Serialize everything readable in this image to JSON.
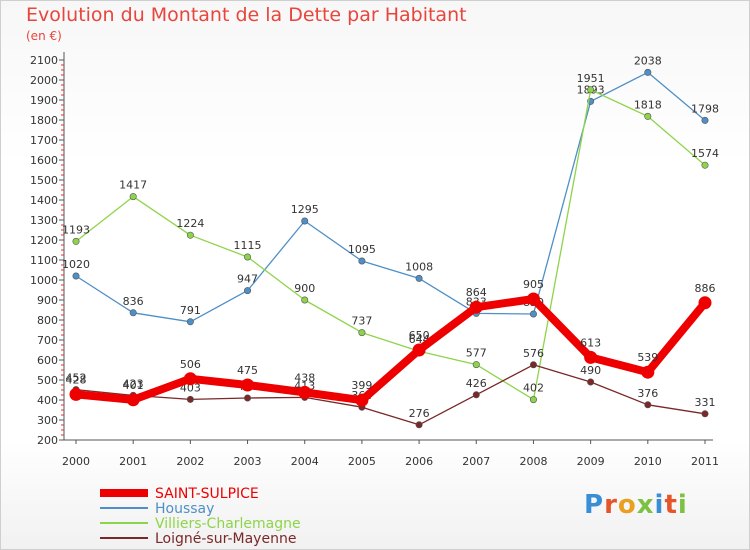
{
  "chart_data": {
    "type": "line",
    "title": "Evolution du Montant de la Dette par Habitant",
    "subtitle": "(en €)",
    "x": [
      "2000",
      "2001",
      "2002",
      "2003",
      "2004",
      "2005",
      "2006",
      "2007",
      "2008",
      "2009",
      "2010",
      "2011"
    ],
    "ylim": [
      200,
      2100
    ],
    "yticks": [
      200,
      300,
      400,
      500,
      600,
      700,
      800,
      900,
      1000,
      1100,
      1200,
      1300,
      1400,
      1500,
      1600,
      1700,
      1800,
      1900,
      2000,
      2100
    ],
    "grid": false,
    "legend_position": "bottom-left",
    "series": [
      {
        "name": "SAINT-SULPICE",
        "color": "#ee0000",
        "highlight": true,
        "values": [
          428,
          401,
          506,
          475,
          438,
          399,
          650,
          864,
          905,
          613,
          539,
          886
        ]
      },
      {
        "name": "Houssay",
        "color": "#4f8fc7",
        "values": [
          1020,
          836,
          791,
          947,
          1295,
          1095,
          1008,
          833,
          830,
          1893,
          2038,
          1798
        ]
      },
      {
        "name": "Villiers-Charlemagne",
        "color": "#8ed44a",
        "values": [
          1193,
          1417,
          1224,
          1115,
          900,
          737,
          644,
          577,
          402,
          1951,
          1818,
          1574
        ]
      },
      {
        "name": "Loigné-sur-Mayenne",
        "color": "#7a2828",
        "values": [
          452,
          423,
          403,
          410,
          413,
          364,
          276,
          426,
          576,
          490,
          376,
          331
        ]
      }
    ]
  },
  "logo": {
    "letters": [
      "P",
      "r",
      "o",
      "x",
      "i",
      "t",
      "i"
    ],
    "colors": [
      "#3a8ed6",
      "#e6542a",
      "#e8a020",
      "#7cc242",
      "#3a8ed6",
      "#e6542a",
      "#7cc242"
    ]
  }
}
